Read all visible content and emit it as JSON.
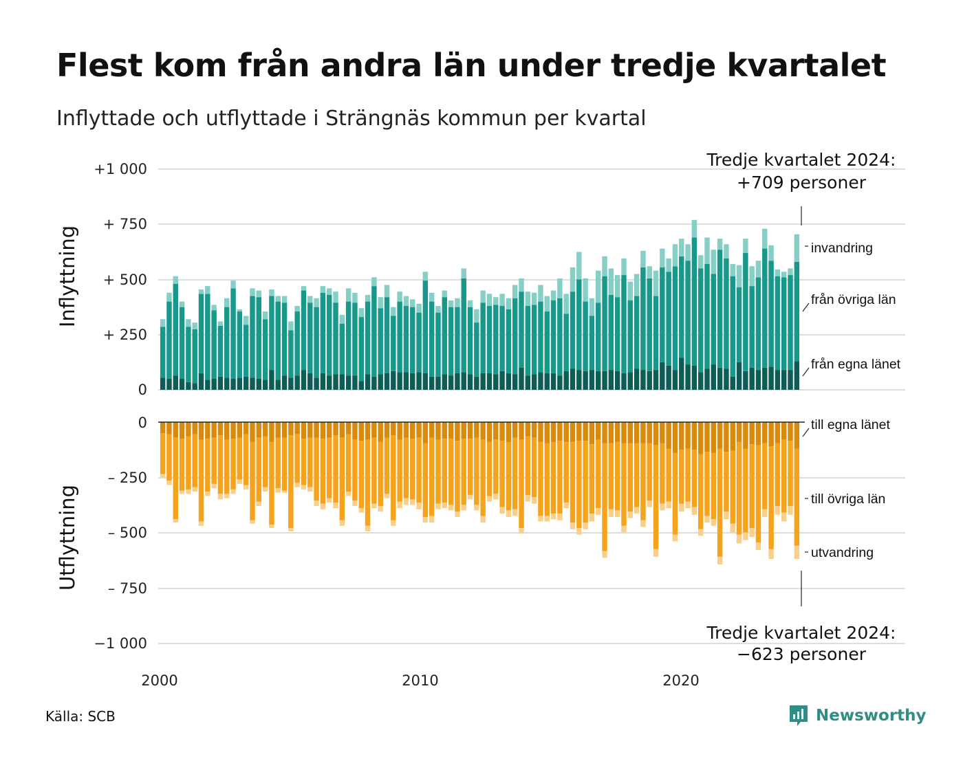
{
  "header": {
    "title": "Flest kom från andra län under tredje kvartalet",
    "subtitle": "Inflyttade och utflyttade i Strängnäs kommun per kvartal"
  },
  "axes": {
    "in_title": "Inflyttning",
    "out_title": "Utflyttning",
    "y_ticks_in": [
      "+1 000",
      "+  750",
      "+  500",
      "+  250",
      "0"
    ],
    "y_ticks_out": [
      "0",
      "–  250",
      "–  500",
      "–  750",
      "−1 000"
    ],
    "x_ticks": [
      "2000",
      "2010",
      "2020"
    ]
  },
  "legend": {
    "in": [
      "invandring",
      "från övriga län",
      "från egna länet"
    ],
    "out": [
      "till egna länet",
      "till övriga län",
      "utvandring"
    ]
  },
  "annotations": {
    "in_line1": "Tredje kvartalet 2024:",
    "in_line2": "+709 personer",
    "out_line1": "Tredje kvartalet 2024:",
    "out_line2": "−623 personer"
  },
  "footer": {
    "source": "Källa: SCB",
    "brand": "Newsworthy"
  },
  "colors": {
    "in_own": "#0d5c55",
    "in_other": "#17988a",
    "in_immig": "#86cfc6",
    "out_own": "#d88a0c",
    "out_other": "#f5a21c",
    "out_emig": "#f8d08c",
    "grid": "#dddddd",
    "brand": "#2f8d86"
  },
  "chart_data": {
    "type": "bar",
    "stacked": true,
    "x_start": "2000 Q1",
    "x_end": "2024 Q3",
    "ylim_in": [
      0,
      1000
    ],
    "ylim_out": [
      -1000,
      0
    ],
    "grid": true,
    "series_in": [
      {
        "name": "från egna länet",
        "values": [
          55,
          50,
          65,
          50,
          35,
          30,
          75,
          45,
          50,
          60,
          55,
          50,
          55,
          60,
          55,
          50,
          45,
          90,
          45,
          65,
          55,
          65,
          90,
          75,
          55,
          75,
          65,
          70,
          70,
          65,
          65,
          40,
          70,
          60,
          70,
          75,
          85,
          80,
          80,
          75,
          80,
          75,
          60,
          60,
          70,
          65,
          75,
          80,
          70,
          60,
          75,
          75,
          70,
          85,
          75,
          70,
          100,
          65,
          70,
          80,
          75,
          75,
          65,
          85,
          95,
          90,
          85,
          90,
          85,
          85,
          90,
          85,
          75,
          80,
          95,
          90,
          85,
          90,
          125,
          110,
          90,
          145,
          115,
          110,
          80,
          95,
          115,
          100,
          95,
          60,
          125,
          85,
          100,
          90,
          100,
          105,
          90,
          90,
          90,
          130
        ]
      },
      {
        "name": "från övriga län",
        "values": [
          230,
          350,
          415,
          325,
          250,
          245,
          360,
          390,
          310,
          230,
          320,
          410,
          300,
          235,
          370,
          370,
          275,
          335,
          355,
          330,
          215,
          290,
          360,
          320,
          320,
          365,
          365,
          325,
          230,
          335,
          330,
          290,
          330,
          410,
          300,
          345,
          250,
          320,
          300,
          300,
          270,
          420,
          340,
          290,
          350,
          310,
          300,
          425,
          305,
          245,
          320,
          305,
          315,
          295,
          290,
          345,
          345,
          315,
          315,
          320,
          280,
          330,
          350,
          260,
          350,
          410,
          315,
          245,
          310,
          430,
          340,
          335,
          445,
          325,
          330,
          465,
          420,
          335,
          430,
          425,
          470,
          460,
          470,
          580,
          470,
          475,
          410,
          535,
          500,
          455,
          340,
          535,
          370,
          420,
          540,
          480,
          425,
          420,
          430,
          450
        ]
      },
      {
        "name": "invandring",
        "values": [
          35,
          40,
          35,
          25,
          35,
          30,
          20,
          35,
          25,
          20,
          40,
          35,
          10,
          40,
          35,
          30,
          35,
          30,
          25,
          30,
          40,
          25,
          20,
          30,
          40,
          30,
          30,
          50,
          40,
          60,
          45,
          40,
          30,
          40,
          50,
          55,
          40,
          45,
          45,
          35,
          40,
          40,
          40,
          30,
          30,
          30,
          40,
          45,
          30,
          60,
          55,
          55,
          35,
          55,
          50,
          60,
          60,
          65,
          55,
          75,
          70,
          45,
          90,
          90,
          110,
          125,
          105,
          80,
          145,
          90,
          120,
          100,
          75,
          85,
          100,
          75,
          55,
          115,
          85,
          60,
          100,
          80,
          75,
          80,
          60,
          120,
          110,
          50,
          65,
          55,
          100,
          65,
          90,
          75,
          90,
          70,
          30,
          25,
          30,
          125
        ]
      }
    ],
    "series_out": [
      {
        "name": "till egna länet",
        "values": [
          -50,
          -55,
          -70,
          -75,
          -65,
          -55,
          -80,
          -75,
          -70,
          -60,
          -80,
          -75,
          -70,
          -55,
          -90,
          -70,
          -65,
          -90,
          -70,
          -70,
          -60,
          -55,
          -75,
          -70,
          -70,
          -75,
          -70,
          -60,
          -70,
          -55,
          -80,
          -85,
          -80,
          -70,
          -90,
          -70,
          -60,
          -80,
          -70,
          -75,
          -70,
          -95,
          -70,
          -80,
          -75,
          -75,
          -85,
          -75,
          -75,
          -70,
          -80,
          -90,
          -80,
          -85,
          -90,
          -70,
          -80,
          -65,
          -70,
          -90,
          -95,
          -90,
          -85,
          -90,
          -90,
          -85,
          -85,
          -100,
          -80,
          -95,
          -95,
          -90,
          -95,
          -95,
          -95,
          -95,
          -95,
          -105,
          -95,
          -120,
          -140,
          -125,
          -120,
          -125,
          -145,
          -135,
          -140,
          -120,
          -135,
          -130,
          -90,
          -120,
          -100,
          -105,
          -95,
          -110,
          -95,
          -80,
          -85,
          -120
        ]
      },
      {
        "name": "till övriga län",
        "values": [
          -185,
          -210,
          -370,
          -235,
          -240,
          -240,
          -370,
          -240,
          -210,
          -265,
          -245,
          -230,
          -190,
          -230,
          -355,
          -290,
          -230,
          -375,
          -230,
          -240,
          -420,
          -220,
          -210,
          -225,
          -285,
          -295,
          -275,
          -305,
          -375,
          -260,
          -275,
          -305,
          -390,
          -300,
          -290,
          -255,
          -385,
          -280,
          -275,
          -275,
          -295,
          -335,
          -355,
          -290,
          -290,
          -300,
          -320,
          -300,
          -255,
          -305,
          -345,
          -245,
          -245,
          -300,
          -310,
          -325,
          -400,
          -265,
          -270,
          -335,
          -330,
          -325,
          -330,
          -275,
          -365,
          -395,
          -370,
          -315,
          -310,
          -490,
          -300,
          -310,
          -375,
          -310,
          -290,
          -350,
          -260,
          -470,
          -275,
          -240,
          -370,
          -245,
          -240,
          -260,
          -340,
          -290,
          -300,
          -490,
          -270,
          -330,
          -420,
          -380,
          -380,
          -440,
          -300,
          -465,
          -285,
          -330,
          -295,
          -440
        ]
      },
      {
        "name": "utvandring",
        "values": [
          -15,
          -20,
          -15,
          -15,
          -20,
          -20,
          -20,
          -20,
          -20,
          -25,
          -20,
          -20,
          -20,
          -20,
          -15,
          -20,
          -20,
          -15,
          -20,
          -10,
          -15,
          -20,
          -20,
          -20,
          -25,
          -25,
          -20,
          -25,
          -25,
          -20,
          -25,
          -20,
          -25,
          -20,
          -25,
          -20,
          -25,
          -30,
          -30,
          -25,
          -30,
          -25,
          -30,
          -25,
          -25,
          -25,
          -25,
          -25,
          -20,
          -25,
          -30,
          -25,
          -25,
          -30,
          -30,
          -30,
          -25,
          -30,
          -30,
          -25,
          -25,
          -25,
          -30,
          -25,
          -30,
          -30,
          -30,
          -35,
          -30,
          -30,
          -35,
          -30,
          -30,
          -30,
          -30,
          -30,
          -30,
          -35,
          -30,
          -30,
          -30,
          -35,
          -30,
          -35,
          -30,
          -30,
          -30,
          -35,
          -35,
          -40,
          -40,
          -35,
          -40,
          -35,
          -35,
          -45,
          -40,
          -40,
          -40,
          -60
        ]
      }
    ]
  }
}
